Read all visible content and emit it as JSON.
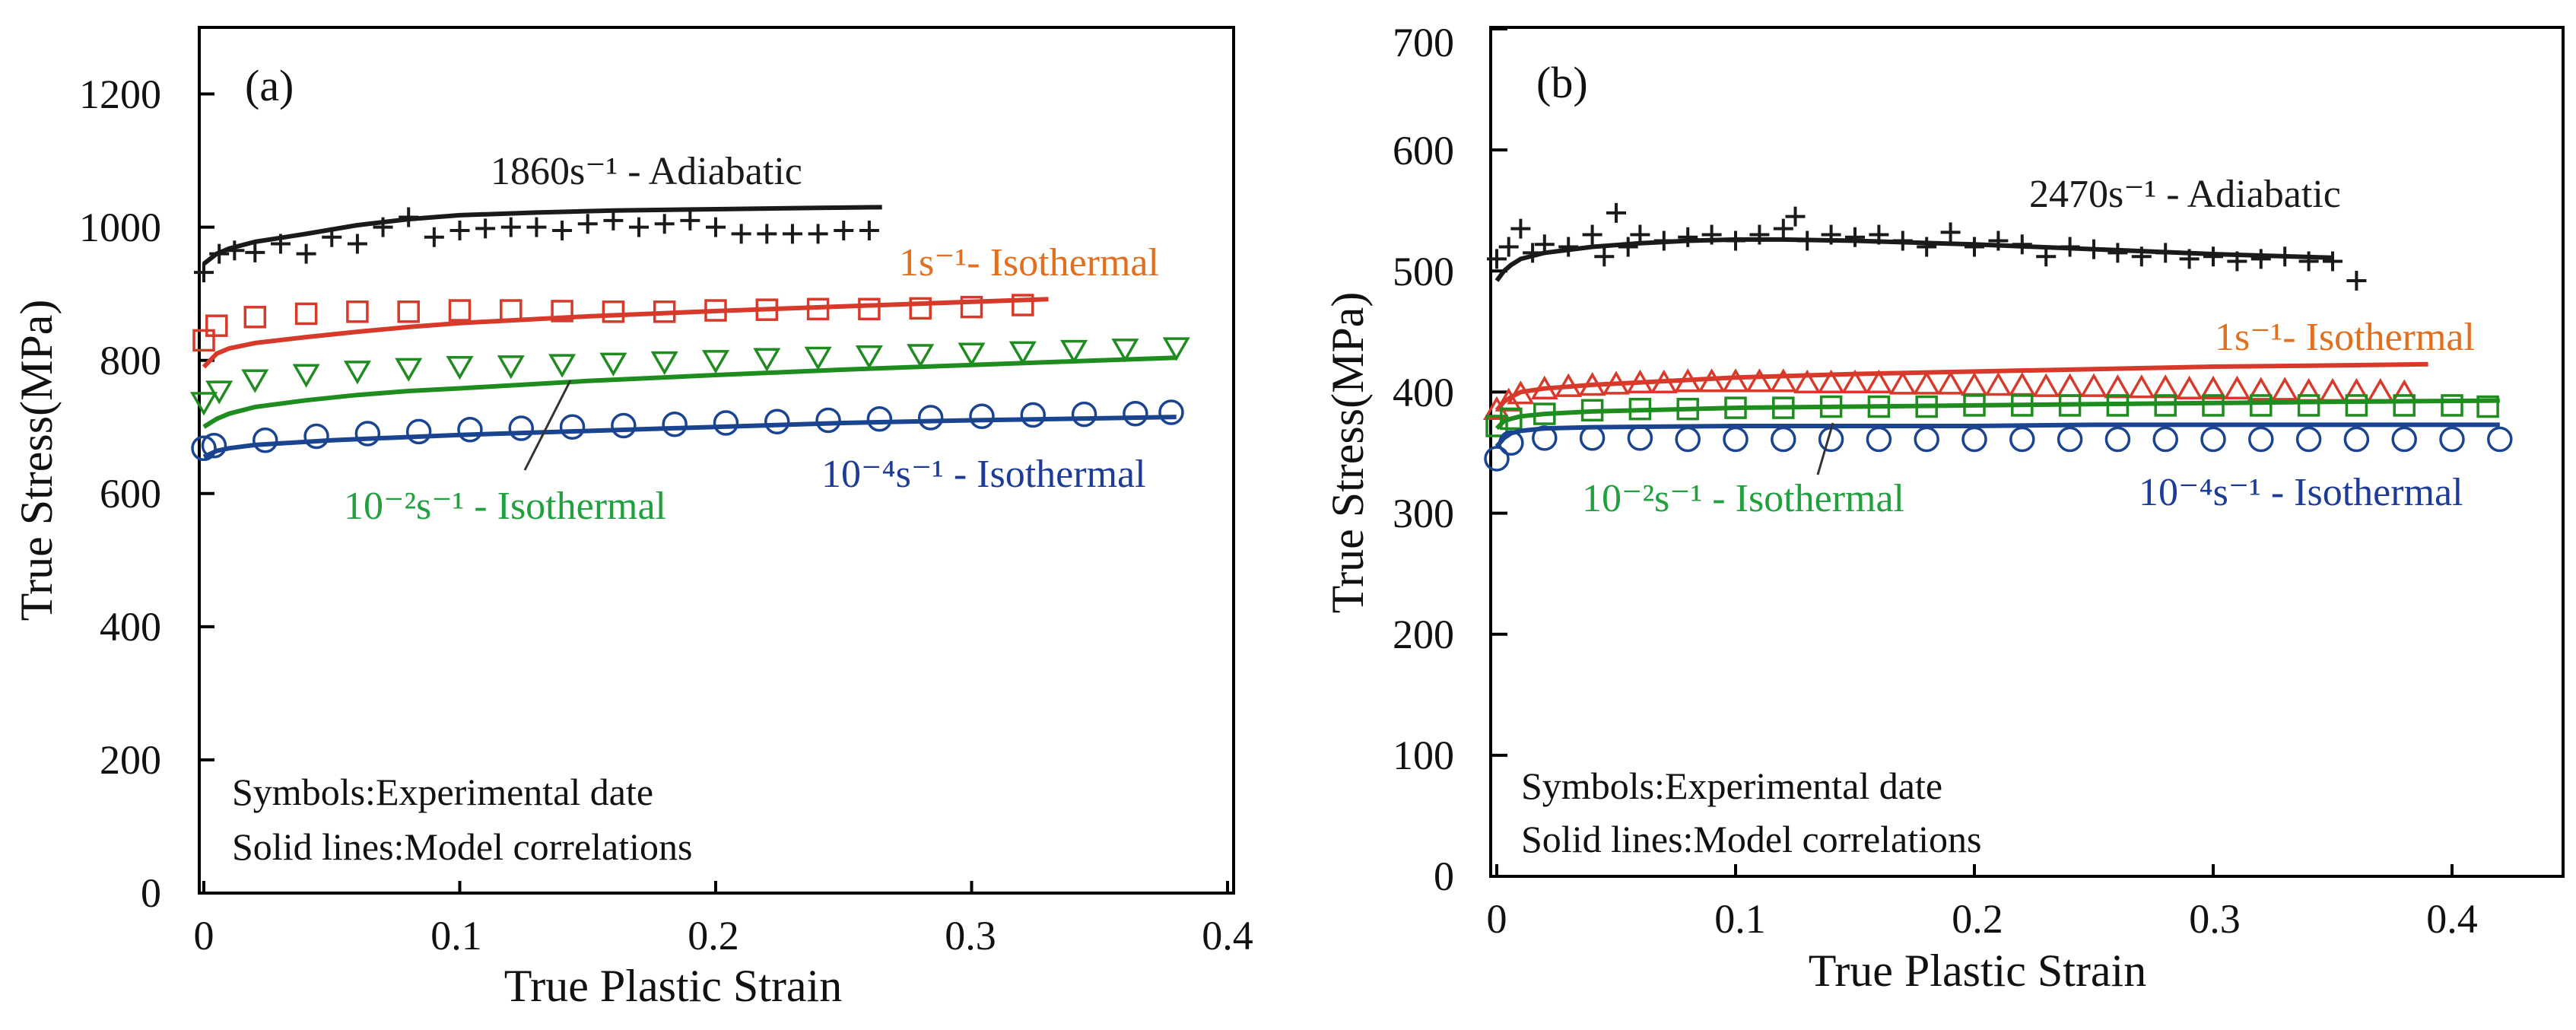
{
  "chart_data": [
    {
      "type": "line",
      "panel_tag": "(a)",
      "xlabel": "True Plastic Strain",
      "ylabel": "True Stress(MPa)",
      "xlim": [
        0,
        0.4
      ],
      "ylim": [
        0,
        1300
      ],
      "x_ticks": [
        0,
        0.1,
        0.2,
        0.3,
        0.4
      ],
      "x_tick_labels": [
        "0",
        "0.1",
        "0.2",
        "0.3",
        "0.4"
      ],
      "y_ticks": [
        0,
        200,
        400,
        600,
        800,
        1000,
        1200
      ],
      "y_tick_labels": [
        "0",
        "200",
        "400",
        "600",
        "800",
        "1000",
        "1200"
      ],
      "notes": [
        "Symbols:Experimental date",
        "Solid lines:Model correlations"
      ],
      "series": [
        {
          "name": "1860s⁻¹ - Adiabatic",
          "color": "#1a1a1a",
          "marker": "plus",
          "label_color": "#1a1a1a",
          "model_x": [
            0,
            0.005,
            0.01,
            0.02,
            0.04,
            0.06,
            0.08,
            0.1,
            0.13,
            0.16,
            0.2,
            0.24,
            0.265
          ],
          "model_y": [
            945,
            960,
            968,
            978,
            990,
            1003,
            1012,
            1018,
            1022,
            1025,
            1027,
            1029,
            1030
          ],
          "exp_x": [
            0,
            0.006,
            0.012,
            0.02,
            0.03,
            0.04,
            0.05,
            0.06,
            0.07,
            0.08,
            0.09,
            0.1,
            0.11,
            0.12,
            0.13,
            0.14,
            0.15,
            0.16,
            0.17,
            0.18,
            0.19,
            0.2,
            0.21,
            0.22,
            0.23,
            0.24,
            0.25,
            0.26
          ],
          "exp_y": [
            932,
            960,
            965,
            962,
            975,
            960,
            985,
            975,
            1000,
            1015,
            985,
            995,
            998,
            1000,
            1000,
            995,
            1005,
            1010,
            1000,
            1005,
            1010,
            1000,
            990,
            990,
            990,
            990,
            995,
            995
          ]
        },
        {
          "name": "1s⁻¹- Isothermal",
          "color": "#d73a2a",
          "marker": "square",
          "label_color": "#e07020",
          "model_x": [
            0,
            0.005,
            0.01,
            0.02,
            0.04,
            0.06,
            0.08,
            0.1,
            0.15,
            0.2,
            0.25,
            0.3,
            0.33
          ],
          "model_y": [
            790,
            810,
            818,
            826,
            835,
            843,
            850,
            856,
            866,
            874,
            881,
            888,
            892
          ],
          "exp_x": [
            0,
            0.005,
            0.02,
            0.04,
            0.06,
            0.08,
            0.1,
            0.12,
            0.14,
            0.16,
            0.18,
            0.2,
            0.22,
            0.24,
            0.26,
            0.28,
            0.3,
            0.32
          ],
          "exp_y": [
            830,
            852,
            865,
            870,
            873,
            873,
            875,
            875,
            874,
            873,
            873,
            875,
            876,
            877,
            877,
            878,
            880,
            883
          ]
        },
        {
          "name": "10⁻²s⁻¹ - Isothermal",
          "color": "#1e8c1e",
          "marker": "triangle-down",
          "label_color": "#22a040",
          "model_x": [
            0,
            0.005,
            0.01,
            0.02,
            0.04,
            0.06,
            0.08,
            0.1,
            0.15,
            0.2,
            0.25,
            0.3,
            0.35,
            0.38
          ],
          "model_y": [
            700,
            712,
            720,
            730,
            740,
            748,
            754,
            758,
            769,
            778,
            786,
            793,
            800,
            804
          ],
          "exp_x": [
            0,
            0.006,
            0.02,
            0.04,
            0.06,
            0.08,
            0.1,
            0.12,
            0.14,
            0.16,
            0.18,
            0.2,
            0.22,
            0.24,
            0.26,
            0.28,
            0.3,
            0.32,
            0.34,
            0.36,
            0.38
          ],
          "exp_y": [
            738,
            755,
            772,
            780,
            785,
            789,
            792,
            793,
            795,
            797,
            799,
            801,
            804,
            806,
            808,
            810,
            812,
            814,
            816,
            818,
            820
          ]
        },
        {
          "name": "10⁻⁴s⁻¹ - Isothermal",
          "color": "#1a4490",
          "marker": "circle",
          "label_color": "#1e3c96",
          "model_x": [
            0,
            0.005,
            0.01,
            0.02,
            0.05,
            0.1,
            0.15,
            0.2,
            0.25,
            0.3,
            0.35,
            0.38
          ],
          "model_y": [
            655,
            664,
            668,
            673,
            680,
            688,
            694,
            700,
            706,
            710,
            713,
            715
          ],
          "exp_x": [
            0,
            0.004,
            0.024,
            0.044,
            0.064,
            0.084,
            0.104,
            0.124,
            0.144,
            0.164,
            0.184,
            0.204,
            0.224,
            0.244,
            0.264,
            0.284,
            0.304,
            0.324,
            0.344,
            0.364,
            0.378
          ],
          "exp_y": [
            668,
            672,
            680,
            686,
            690,
            693,
            696,
            698,
            700,
            702,
            704,
            706,
            708,
            710,
            712,
            714,
            716,
            718,
            719,
            720,
            722
          ]
        }
      ]
    },
    {
      "type": "line",
      "panel_tag": "(b)",
      "xlabel": "True Plastic Strain",
      "ylabel": "True Stress(MPa)",
      "xlim": [
        0,
        0.43
      ],
      "ylim": [
        0,
        700
      ],
      "x_ticks": [
        0,
        0.1,
        0.2,
        0.3,
        0.4
      ],
      "x_tick_labels": [
        "0",
        "0.1",
        "0.2",
        "0.3",
        "0.4"
      ],
      "y_ticks": [
        0,
        100,
        200,
        300,
        400,
        500,
        600,
        700
      ],
      "y_tick_labels": [
        "0",
        "100",
        "200",
        "300",
        "400",
        "500",
        "600",
        "700"
      ],
      "notes": [
        "Symbols:Experimental date",
        "Solid lines:Model correlations"
      ],
      "series": [
        {
          "name": "2470s⁻¹ - Adiabatic",
          "color": "#1a1a1a",
          "marker": "plus",
          "label_color": "#1a1a1a",
          "model_x": [
            0,
            0.003,
            0.006,
            0.01,
            0.02,
            0.04,
            0.06,
            0.08,
            0.1,
            0.12,
            0.15,
            0.2,
            0.25,
            0.3,
            0.35
          ],
          "model_y": [
            492,
            500,
            505,
            510,
            515,
            520,
            523,
            525,
            526,
            526,
            525,
            522,
            518,
            514,
            511
          ],
          "exp_x": [
            0,
            0.005,
            0.01,
            0.015,
            0.02,
            0.03,
            0.04,
            0.045,
            0.05,
            0.055,
            0.06,
            0.07,
            0.08,
            0.09,
            0.1,
            0.11,
            0.12,
            0.125,
            0.13,
            0.14,
            0.15,
            0.16,
            0.17,
            0.18,
            0.19,
            0.2,
            0.21,
            0.22,
            0.23,
            0.24,
            0.25,
            0.26,
            0.27,
            0.28,
            0.29,
            0.3,
            0.31,
            0.32,
            0.33,
            0.34,
            0.35,
            0.36
          ],
          "exp_y": [
            510,
            520,
            535,
            515,
            522,
            520,
            530,
            512,
            548,
            520,
            530,
            525,
            528,
            530,
            525,
            530,
            535,
            545,
            525,
            530,
            528,
            530,
            525,
            520,
            532,
            520,
            525,
            522,
            512,
            520,
            518,
            515,
            512,
            515,
            510,
            512,
            508,
            510,
            512,
            508,
            508,
            492
          ]
        },
        {
          "name": "1s⁻¹- Isothermal",
          "color": "#d73a2a",
          "marker": "triangle-up",
          "label_color": "#e07020",
          "model_x": [
            0,
            0.003,
            0.006,
            0.01,
            0.02,
            0.04,
            0.06,
            0.08,
            0.1,
            0.15,
            0.2,
            0.25,
            0.3,
            0.35,
            0.39
          ],
          "model_y": [
            385,
            392,
            396,
            400,
            403,
            406,
            408,
            410,
            412,
            415,
            417,
            419,
            421,
            422,
            423
          ],
          "exp_x": [
            0,
            0.005,
            0.01,
            0.02,
            0.03,
            0.04,
            0.05,
            0.06,
            0.07,
            0.08,
            0.09,
            0.1,
            0.11,
            0.12,
            0.13,
            0.14,
            0.15,
            0.16,
            0.17,
            0.18,
            0.19,
            0.2,
            0.21,
            0.22,
            0.23,
            0.24,
            0.25,
            0.26,
            0.27,
            0.28,
            0.29,
            0.3,
            0.31,
            0.32,
            0.33,
            0.34,
            0.35,
            0.36,
            0.37,
            0.38
          ],
          "exp_y": [
            385,
            392,
            398,
            402,
            404,
            405,
            406,
            407,
            407,
            408,
            408,
            408,
            408,
            408,
            407,
            407,
            407,
            407,
            406,
            406,
            406,
            405,
            405,
            405,
            404,
            404,
            404,
            403,
            403,
            403,
            402,
            402,
            402,
            401,
            401,
            400,
            400,
            400,
            400,
            399
          ]
        },
        {
          "name": "10⁻²s⁻¹ - Isothermal",
          "color": "#1e8c1e",
          "marker": "square",
          "label_color": "#22a040",
          "model_x": [
            0,
            0.003,
            0.006,
            0.01,
            0.02,
            0.04,
            0.06,
            0.08,
            0.1,
            0.15,
            0.2,
            0.25,
            0.3,
            0.35,
            0.42
          ],
          "model_y": [
            370,
            376,
            378,
            380,
            382,
            384,
            385,
            386,
            387,
            388,
            389,
            390,
            391,
            392,
            393
          ],
          "exp_x": [
            0,
            0.006,
            0.02,
            0.04,
            0.06,
            0.08,
            0.1,
            0.12,
            0.14,
            0.16,
            0.18,
            0.2,
            0.22,
            0.24,
            0.26,
            0.28,
            0.3,
            0.32,
            0.34,
            0.36,
            0.38,
            0.4,
            0.415
          ],
          "exp_y": [
            372,
            378,
            382,
            385,
            386,
            386,
            387,
            387,
            388,
            388,
            388,
            389,
            389,
            389,
            389,
            389,
            389,
            389,
            389,
            389,
            389,
            389,
            388
          ]
        },
        {
          "name": "10⁻⁴s⁻¹ - Isothermal",
          "color": "#1a4490",
          "marker": "circle",
          "label_color": "#1e3c96",
          "model_x": [
            0,
            0.003,
            0.006,
            0.01,
            0.02,
            0.04,
            0.1,
            0.15,
            0.2,
            0.25,
            0.3,
            0.35,
            0.42
          ],
          "model_y": [
            355,
            362,
            366,
            368,
            370,
            371,
            372,
            372,
            372,
            373,
            373,
            373,
            373
          ],
          "exp_x": [
            0,
            0.006,
            0.02,
            0.04,
            0.06,
            0.08,
            0.1,
            0.12,
            0.14,
            0.16,
            0.18,
            0.2,
            0.22,
            0.24,
            0.26,
            0.28,
            0.3,
            0.32,
            0.34,
            0.36,
            0.38,
            0.4,
            0.42
          ],
          "exp_y": [
            345,
            358,
            362,
            362,
            362,
            361,
            361,
            361,
            361,
            361,
            361,
            361,
            361,
            361,
            361,
            361,
            361,
            361,
            361,
            361,
            361,
            361,
            361
          ]
        }
      ]
    }
  ]
}
